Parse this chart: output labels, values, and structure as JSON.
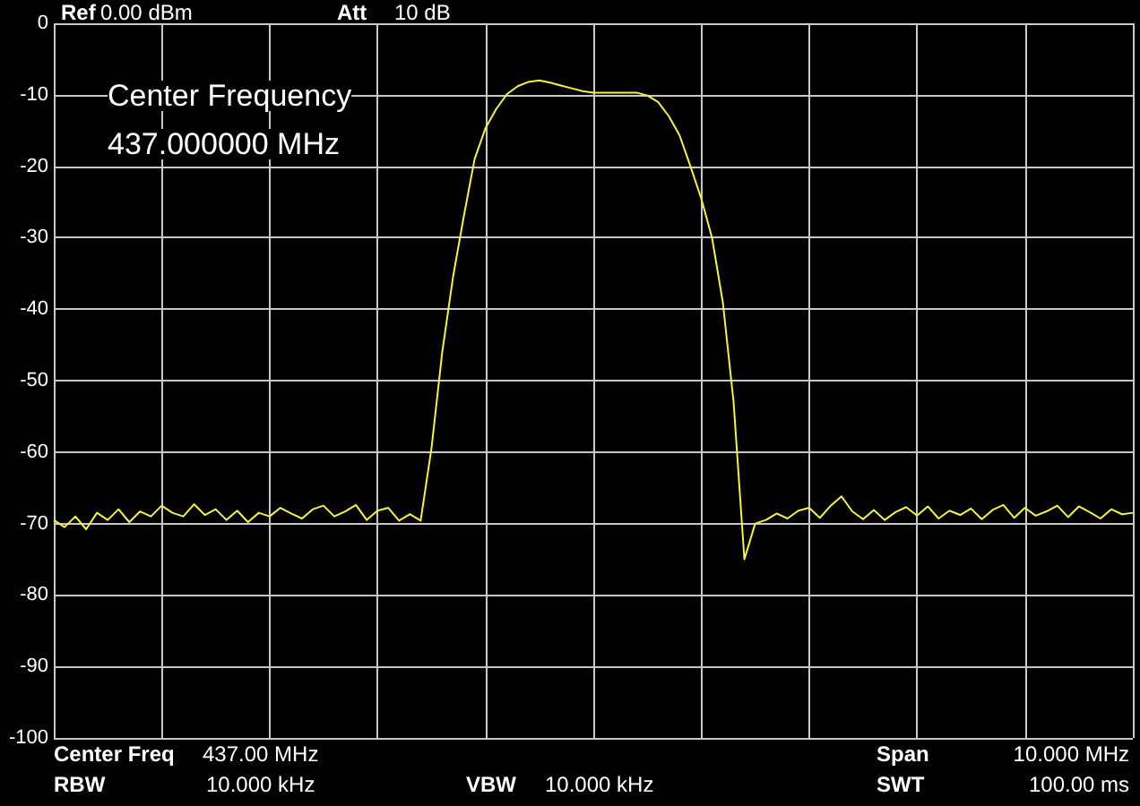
{
  "chart_data": {
    "type": "line",
    "color": "#f4f43a",
    "categories": [
      null,
      null,
      null,
      null,
      null,
      null,
      null,
      null,
      null,
      null,
      null,
      null,
      null,
      null,
      null,
      null,
      null,
      null,
      null,
      null,
      null,
      null,
      null,
      null,
      null,
      null,
      null,
      null,
      null,
      null,
      null,
      null,
      null,
      null,
      null,
      null,
      null,
      null,
      null,
      null,
      null,
      null,
      null,
      null,
      null,
      null,
      null,
      null,
      null,
      null,
      null,
      null,
      null,
      null,
      null,
      null,
      null,
      null,
      null,
      null,
      null,
      null,
      null,
      null,
      null,
      null,
      null,
      null,
      null,
      null,
      null,
      null,
      null,
      null,
      null,
      null,
      null,
      null,
      null,
      null,
      null,
      null,
      null,
      null,
      null,
      null,
      null,
      null,
      null,
      null,
      null,
      null,
      null,
      null,
      null,
      null,
      null,
      null,
      null,
      null,
      null
    ],
    "values": [
      -69.5,
      -70.5,
      -69,
      -70.8,
      -68.5,
      -69.5,
      -68,
      -69.8,
      -68.3,
      -69,
      -67.5,
      -68.5,
      -69,
      -67.3,
      -68.8,
      -68,
      -69.5,
      -68.2,
      -69.8,
      -68.5,
      -69,
      -67.8,
      -68.6,
      -69.3,
      -68,
      -67.5,
      -69,
      -68.3,
      -67.4,
      -69.5,
      -68.2,
      -67.8,
      -69.6,
      -68.7,
      -69.6,
      -59.5,
      -46,
      -35.5,
      -27,
      -19,
      -14.7,
      -12,
      -9.9,
      -8.8,
      -8.2,
      -8,
      -8.3,
      -8.7,
      -9.1,
      -9.5,
      -9.7,
      -9.7,
      -9.7,
      -9.7,
      -9.7,
      -10.1,
      -11,
      -13,
      -15.7,
      -20,
      -24.5,
      -30,
      -39,
      -53,
      -75,
      -70,
      -69.5,
      -68.6,
      -69.3,
      -68.2,
      -67.8,
      -69.2,
      -67.5,
      -66.2,
      -68.3,
      -69.4,
      -68.1,
      -69.5,
      -68.4,
      -67.7,
      -68.9,
      -67.6,
      -69.3,
      -68.2,
      -68.8,
      -67.9,
      -69.4,
      -68.1,
      -67.4,
      -69.2,
      -67.8,
      -68.9,
      -68.3,
      -67.5,
      -69.1,
      -67.6,
      -68.4,
      -69.3,
      -68.0,
      -68.7,
      -68.5
    ],
    "ylim": [
      -100,
      0
    ],
    "yticks": [
      0,
      -10,
      -20,
      -30,
      -40,
      -50,
      -60,
      -70,
      -80,
      -90,
      -100
    ],
    "grid": true,
    "annotations": [
      "Ref",
      "0.00 dBm",
      "Att",
      "10 dB",
      "Center Frequency",
      "437.000000 MHz",
      "Center Freq",
      "437.00 MHz",
      "RBW",
      "10.000 kHz",
      "VBW",
      "10.000 kHz",
      "Span",
      "10.000 MHz",
      "SWT",
      "100.00 ms"
    ]
  }
}
